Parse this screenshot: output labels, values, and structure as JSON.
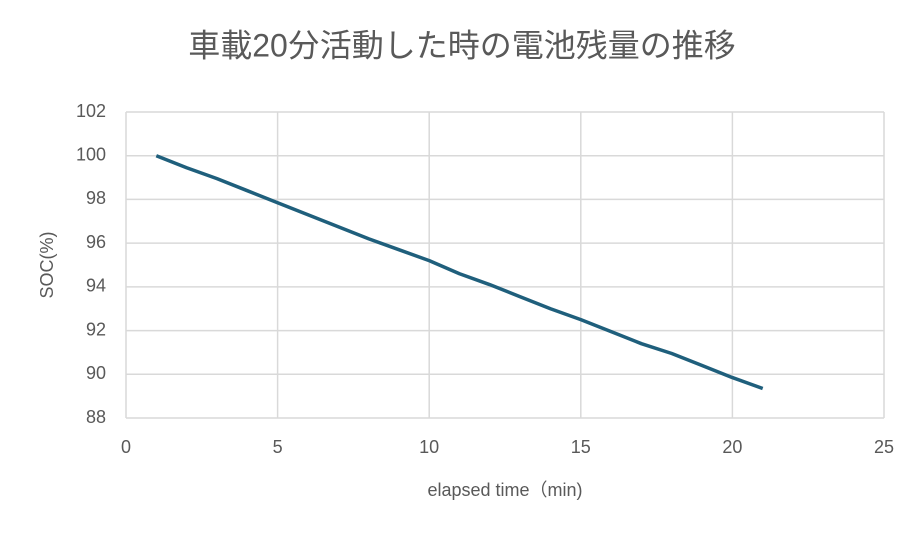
{
  "chart_data": {
    "type": "line",
    "title": "車載20分活動した時の電池残量の推移",
    "x_label": "elapsed time（min)",
    "y_label": "SOC(%)",
    "series": [
      {
        "name": "SOC",
        "color": "#1f5f7c",
        "x": [
          1,
          2,
          3,
          4,
          5,
          6,
          7,
          8,
          9,
          10,
          11,
          12,
          13,
          14,
          15,
          16,
          17,
          18,
          19,
          20,
          21
        ],
        "values": [
          100,
          99.45,
          98.95,
          98.4,
          97.85,
          97.3,
          96.75,
          96.2,
          95.7,
          95.2,
          94.6,
          94.1,
          93.55,
          93.0,
          92.5,
          91.95,
          91.4,
          90.95,
          90.4,
          89.85,
          89.35
        ]
      }
    ],
    "xlim": [
      0,
      25
    ],
    "xticks": [
      0,
      5,
      10,
      15,
      20,
      25
    ],
    "ylim": [
      88,
      102
    ],
    "yticks": [
      88,
      90,
      92,
      94,
      96,
      98,
      100,
      102
    ],
    "grid": true
  }
}
